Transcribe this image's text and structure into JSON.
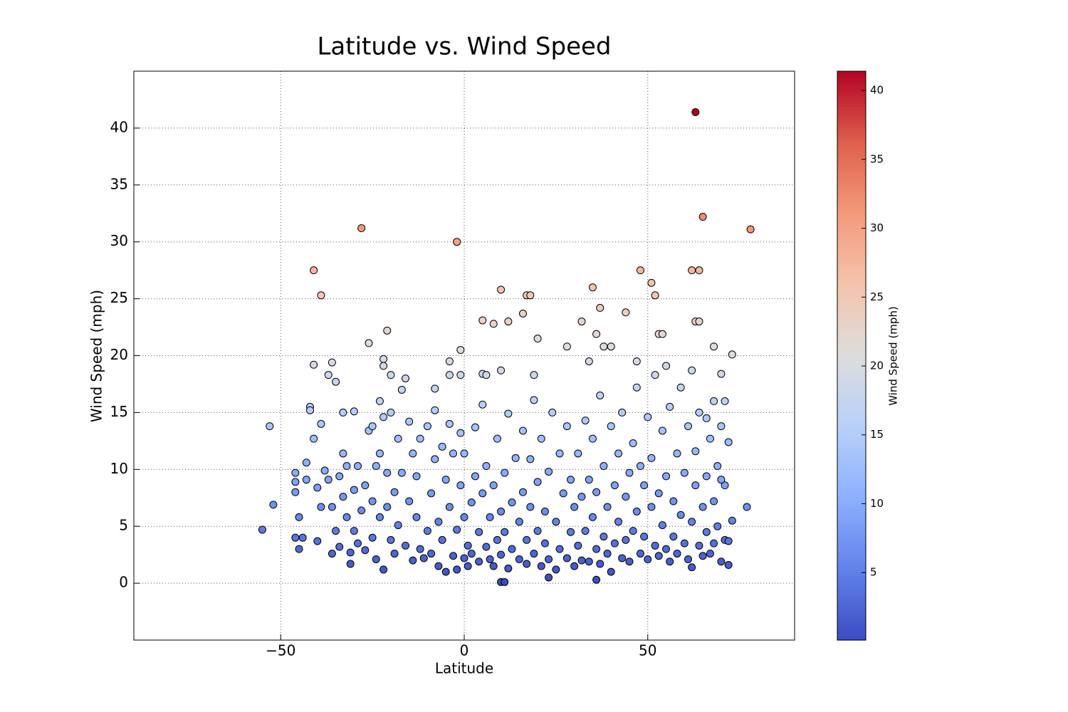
{
  "chart_data": {
    "type": "scatter",
    "title": "Latitude vs. Wind Speed",
    "x_label": "Latitude",
    "y_label": "Wind Speed (mph)",
    "xlim": [
      -90,
      90
    ],
    "ylim": [
      -5,
      45
    ],
    "xticks": [
      {
        "value": -50,
        "label": "−50"
      },
      0,
      50
    ],
    "yticks": [
      0,
      5,
      10,
      15,
      20,
      25,
      30,
      35,
      40
    ],
    "grid": true,
    "colormap": "coolwarm",
    "colorbar": {
      "label": "Wind Speed (mph)",
      "lim": [
        0.1,
        41.4
      ],
      "ticks": [
        5,
        10,
        15,
        20,
        25,
        30,
        35,
        40
      ]
    },
    "x": [
      -55,
      -53,
      -52,
      -41,
      -39,
      -28,
      -2,
      78,
      65,
      63,
      62,
      64,
      48,
      51,
      52,
      35,
      10,
      17,
      18,
      -21,
      -26,
      73,
      68,
      37,
      44,
      5,
      8,
      12,
      16,
      32,
      36,
      53,
      54,
      63,
      64,
      20,
      -1,
      -4,
      -41,
      -36,
      -37,
      -22,
      -22,
      -20,
      -16,
      -8,
      -4,
      -1,
      5,
      6,
      10,
      19,
      28,
      34,
      38,
      40,
      47,
      55,
      62,
      70,
      71,
      10,
      11,
      36,
      23,
      -46,
      -46,
      -46,
      -45,
      -45,
      -46,
      -44,
      -43,
      -43,
      -42,
      -42,
      -41,
      -40,
      -40,
      -39,
      -39,
      -38,
      -37,
      -36,
      -36,
      -35,
      -35,
      -34,
      -34,
      -33,
      -33,
      -33,
      -32,
      -32,
      -31,
      -31,
      -30,
      -30,
      -30,
      -29,
      -29,
      -28,
      -27,
      -27,
      -26,
      -25,
      -25,
      -25,
      -24,
      -24,
      -23,
      -23,
      -23,
      -22,
      -22,
      -21,
      -21,
      -20,
      -20,
      -19,
      -19,
      -18,
      -18,
      -17,
      -17,
      -16,
      -15,
      -15,
      -14,
      -14,
      -13,
      -13,
      -12,
      -12,
      -11,
      -10,
      -10,
      -9,
      -9,
      -8,
      -8,
      -7,
      -7,
      -6,
      -6,
      -5,
      -5,
      -4,
      -4,
      -3,
      -3,
      -2,
      -2,
      -1,
      -1,
      0,
      0,
      0,
      1,
      1,
      2,
      2,
      3,
      3,
      4,
      4,
      5,
      5,
      6,
      6,
      7,
      7,
      8,
      8,
      9,
      9,
      10,
      10,
      11,
      11,
      12,
      12,
      13,
      13,
      14,
      15,
      15,
      16,
      16,
      17,
      17,
      18,
      18,
      19,
      19,
      20,
      20,
      21,
      21,
      22,
      22,
      23,
      23,
      24,
      25,
      25,
      26,
      26,
      27,
      28,
      28,
      29,
      29,
      30,
      30,
      31,
      31,
      32,
      32,
      33,
      33,
      34,
      34,
      35,
      35,
      36,
      36,
      37,
      37,
      38,
      38,
      39,
      39,
      40,
      40,
      41,
      41,
      42,
      42,
      43,
      43,
      44,
      44,
      45,
      45,
      46,
      46,
      47,
      47,
      48,
      48,
      49,
      49,
      50,
      50,
      51,
      51,
      52,
      52,
      53,
      53,
      54,
      54,
      55,
      55,
      56,
      56,
      57,
      57,
      58,
      58,
      59,
      59,
      60,
      60,
      61,
      61,
      62,
      62,
      63,
      63,
      64,
      64,
      65,
      65,
      66,
      66,
      67,
      67,
      68,
      68,
      69,
      69,
      70,
      70,
      71,
      71,
      72,
      72,
      73,
      72,
      77,
      70,
      68,
      66
    ],
    "values": [
      4.7,
      13.8,
      6.9,
      27.5,
      25.3,
      31.2,
      30,
      31.1,
      32.2,
      41.4,
      27.5,
      27.5,
      27.5,
      26.4,
      25.3,
      26,
      25.8,
      25.3,
      25.3,
      22.2,
      21.1,
      20.1,
      20.8,
      24.2,
      23.8,
      23.1,
      22.8,
      23,
      23.7,
      23,
      21.9,
      21.9,
      21.9,
      23,
      23,
      21.5,
      20.5,
      19.5,
      19.2,
      19.4,
      18.3,
      19.7,
      19.1,
      18.3,
      18,
      17.1,
      18.3,
      18.3,
      18.4,
      18.3,
      18.7,
      18.3,
      20.8,
      19.5,
      20.8,
      20.8,
      19.5,
      19.1,
      18.7,
      18.4,
      16,
      0.1,
      0.1,
      0.3,
      0.5,
      9.7,
      8.9,
      8,
      5.8,
      3,
      4,
      4,
      9.1,
      10.6,
      15.5,
      15.2,
      12.7,
      8.4,
      3.7,
      6.7,
      14,
      9.9,
      9.1,
      6.7,
      2.6,
      17.7,
      4.6,
      3.2,
      9.4,
      15,
      11.4,
      7.6,
      5.8,
      10.3,
      2.7,
      1.7,
      15.1,
      8.2,
      4.6,
      3.5,
      10.3,
      6.4,
      8.6,
      2.9,
      13.4,
      13.8,
      7.2,
      4,
      2.1,
      10.3,
      16,
      11.4,
      5.8,
      1.2,
      14.6,
      9.7,
      6.7,
      15,
      3.8,
      8,
      2.6,
      12.7,
      5.1,
      17,
      9.7,
      3.3,
      14.2,
      7.2,
      2,
      11.4,
      5.8,
      9.4,
      3,
      12.7,
      2.2,
      4.6,
      13.8,
      7.9,
      2.6,
      15.2,
      10.9,
      5.4,
      1.5,
      12,
      3.8,
      9.1,
      1,
      14,
      6.7,
      2.4,
      11.4,
      4.7,
      1.2,
      8.6,
      13.2,
      2.2,
      5.8,
      11.4,
      1.5,
      3.3,
      7.1,
      2.6,
      13.7,
      9.4,
      4.5,
      1.9,
      7.9,
      15.7,
      3.2,
      10.3,
      5.8,
      2.1,
      8.6,
      1.5,
      12.7,
      3.8,
      6.3,
      2.5,
      9.7,
      4.5,
      1.3,
      14.9,
      7.1,
      3,
      11,
      2.1,
      5.4,
      8,
      13.4,
      3.8,
      1.7,
      6.7,
      10.9,
      2.6,
      16.1,
      4.6,
      8.9,
      1.5,
      12.7,
      3.5,
      6.3,
      9.8,
      2.1,
      15,
      5.4,
      1.2,
      11.4,
      3,
      7.9,
      2.2,
      13.8,
      4.5,
      9.1,
      1.5,
      6.7,
      3.3,
      11.4,
      2,
      7.6,
      14.3,
      4.6,
      9.1,
      1.9,
      5.8,
      12.7,
      3,
      8,
      1.7,
      16.5,
      4.1,
      10.3,
      2.6,
      6.7,
      13.8,
      1,
      8.6,
      3.5,
      5.4,
      11.4,
      2.2,
      15,
      7.6,
      3.8,
      9.7,
      1.9,
      12.3,
      4.6,
      6.3,
      17.2,
      2.6,
      10.3,
      4.1,
      8.6,
      14.6,
      2.1,
      6.7,
      11,
      3.3,
      18.3,
      7.9,
      2.4,
      13.4,
      5.1,
      9.4,
      3,
      1.9,
      15.5,
      7.2,
      4.1,
      11.4,
      2.6,
      6,
      17.2,
      3.5,
      9.7,
      2.1,
      13.8,
      5.4,
      1.4,
      8.6,
      11.6,
      3.3,
      15,
      6.7,
      2.4,
      9.4,
      4.5,
      12.7,
      2.6,
      7.2,
      3.5,
      10.3,
      5,
      1.9,
      13.8,
      3.8,
      8.6,
      1.6,
      12.4,
      5.5,
      3.7,
      6.7,
      9.1,
      16,
      14.5
    ]
  }
}
